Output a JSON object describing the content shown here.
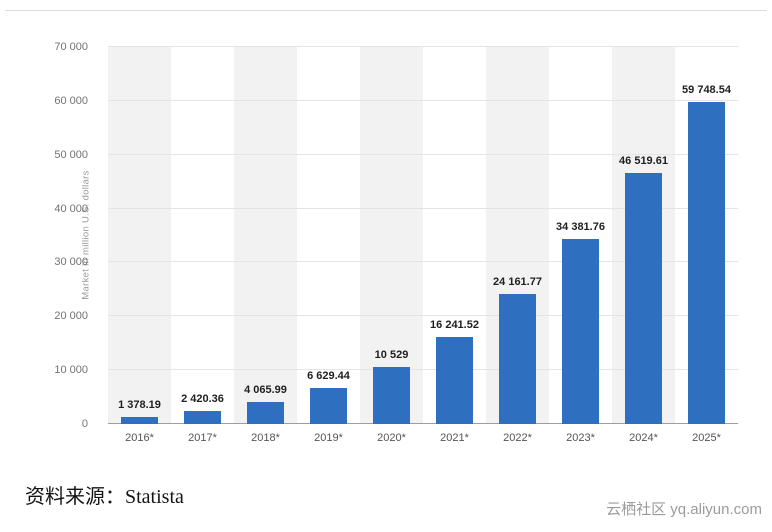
{
  "page": {
    "source_text": "资料来源：Statista",
    "watermark": "云栖社区 yq.aliyun.com"
  },
  "chart_data": {
    "type": "bar",
    "title": "",
    "xlabel": "",
    "ylabel": "Market in million U.S. dollars",
    "ylim": [
      0,
      70000
    ],
    "ytick_step": 10000,
    "ytick_labels": [
      "0",
      "10 000",
      "20 000",
      "30 000",
      "40 000",
      "50 000",
      "60 000",
      "70 000"
    ],
    "grid": true,
    "legend": "none",
    "bar_color": "#2e6fc0",
    "stripe_color": "#f2f2f2",
    "categories": [
      "2016*",
      "2017*",
      "2018*",
      "2019*",
      "2020*",
      "2021*",
      "2022*",
      "2023*",
      "2024*",
      "2025*"
    ],
    "values": [
      1378.19,
      2420.36,
      4065.99,
      6629.44,
      10529,
      16241.52,
      24161.77,
      34381.76,
      46519.61,
      59748.54
    ],
    "value_labels": [
      "1 378.19",
      "2 420.36",
      "4 065.99",
      "6 629.44",
      "10 529",
      "16 241.52",
      "24 161.77",
      "34 381.76",
      "46 519.61",
      "59 748.54"
    ]
  }
}
